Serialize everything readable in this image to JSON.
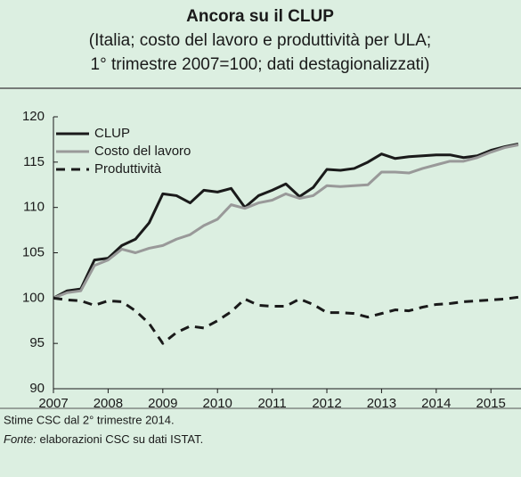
{
  "chart_data": {
    "type": "line",
    "title": "Ancora su il CLUP",
    "subtitle": [
      "(Italia; costo del lavoro e produttività per ULA;",
      "1° trimestre 2007=100; dati destagionalizzati)"
    ],
    "note": "Stime CSC dal 2° trimestre 2014.",
    "source_label": "Fonte:",
    "source": "elaborazioni CSC su dati ISTAT.",
    "x": [
      2007,
      2007.25,
      2007.5,
      2007.75,
      2008,
      2008.25,
      2008.5,
      2008.75,
      2009,
      2009.25,
      2009.5,
      2009.75,
      2010,
      2010.25,
      2010.5,
      2010.75,
      2011,
      2011.25,
      2011.5,
      2011.75,
      2012,
      2012.25,
      2012.5,
      2012.75,
      2013,
      2013.25,
      2013.5,
      2013.75,
      2014,
      2014.25,
      2014.5,
      2014.75,
      2015,
      2015.25,
      2015.5
    ],
    "series": [
      {
        "name": "CLUP",
        "color": "#1a1a1a",
        "dashed": false,
        "values": [
          100,
          100.8,
          101,
          104.2,
          104.4,
          105.8,
          106.5,
          108.3,
          111.5,
          111.3,
          110.5,
          111.9,
          111.7,
          112.1,
          110,
          111.3,
          111.9,
          112.6,
          111.2,
          112.2,
          114.2,
          114.1,
          114.3,
          115,
          115.9,
          115.4,
          115.6,
          115.7,
          115.8,
          115.8,
          115.5,
          115.7,
          116.3,
          116.7,
          117
        ]
      },
      {
        "name": "Costo del lavoro",
        "color": "#999999",
        "dashed": false,
        "values": [
          100,
          100.6,
          100.8,
          103.6,
          104.2,
          105.4,
          105,
          105.5,
          105.8,
          106.5,
          107,
          108,
          108.7,
          110.3,
          109.9,
          110.5,
          110.8,
          111.5,
          111,
          111.3,
          112.4,
          112.3,
          112.4,
          112.5,
          113.9,
          113.9,
          113.8,
          114.3,
          114.7,
          115.1,
          115.1,
          115.5,
          116.1,
          116.6,
          116.9
        ]
      },
      {
        "name": "Produttività",
        "color": "#1a1a1a",
        "dashed": true,
        "values": [
          100,
          99.8,
          99.7,
          99.2,
          99.7,
          99.6,
          98.6,
          97.2,
          95,
          96.2,
          96.9,
          96.7,
          97.5,
          98.5,
          99.9,
          99.2,
          99.1,
          99.1,
          99.9,
          99.3,
          98.4,
          98.4,
          98.3,
          97.9,
          98.3,
          98.7,
          98.6,
          99,
          99.3,
          99.4,
          99.6,
          99.7,
          99.8,
          99.9,
          100.1
        ]
      }
    ],
    "xlim": [
      2007,
      2015.55
    ],
    "xticks": [
      2007,
      2008,
      2009,
      2010,
      2011,
      2012,
      2013,
      2014,
      2015
    ],
    "ylim": [
      90,
      120
    ],
    "yticks": [
      90,
      95,
      100,
      105,
      110,
      115,
      120
    ],
    "legend": "upper left"
  }
}
